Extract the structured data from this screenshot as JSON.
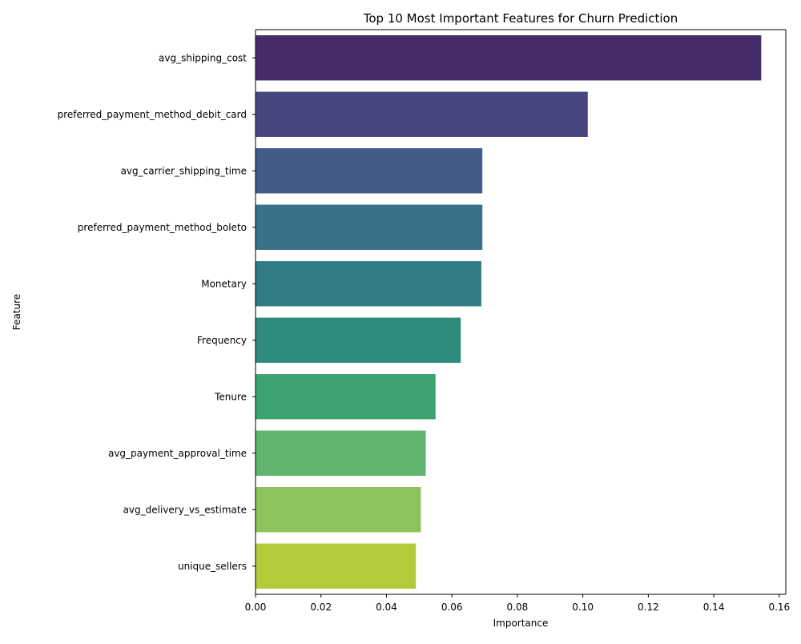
{
  "chart_data": {
    "type": "bar",
    "orientation": "horizontal",
    "title": "Top 10 Most Important Features for Churn Prediction",
    "xlabel": "Importance",
    "ylabel": "Feature",
    "xlim": [
      0,
      0.162
    ],
    "xticks": [
      0.0,
      0.02,
      0.04,
      0.06,
      0.08,
      0.1,
      0.12,
      0.14,
      0.16
    ],
    "xtick_labels": [
      "0.00",
      "0.02",
      "0.04",
      "0.06",
      "0.08",
      "0.10",
      "0.12",
      "0.14",
      "0.16"
    ],
    "grid": false,
    "legend": "none",
    "categories": [
      "avg_shipping_cost",
      "preferred_payment_method_debit_card",
      "avg_carrier_shipping_time",
      "preferred_payment_method_boleto",
      "Monetary",
      "Frequency",
      "Tenure",
      "avg_payment_approval_time",
      "avg_delivery_vs_estimate",
      "unique_sellers"
    ],
    "values": [
      0.1545,
      0.1015,
      0.0693,
      0.0693,
      0.069,
      0.0627,
      0.055,
      0.052,
      0.0505,
      0.049
    ],
    "colors": [
      "#472c6a",
      "#48467f",
      "#415c87",
      "#39708a",
      "#307c84",
      "#2e8c7c",
      "#3da46f",
      "#60b56e",
      "#8bc45b",
      "#b3ca39"
    ]
  }
}
